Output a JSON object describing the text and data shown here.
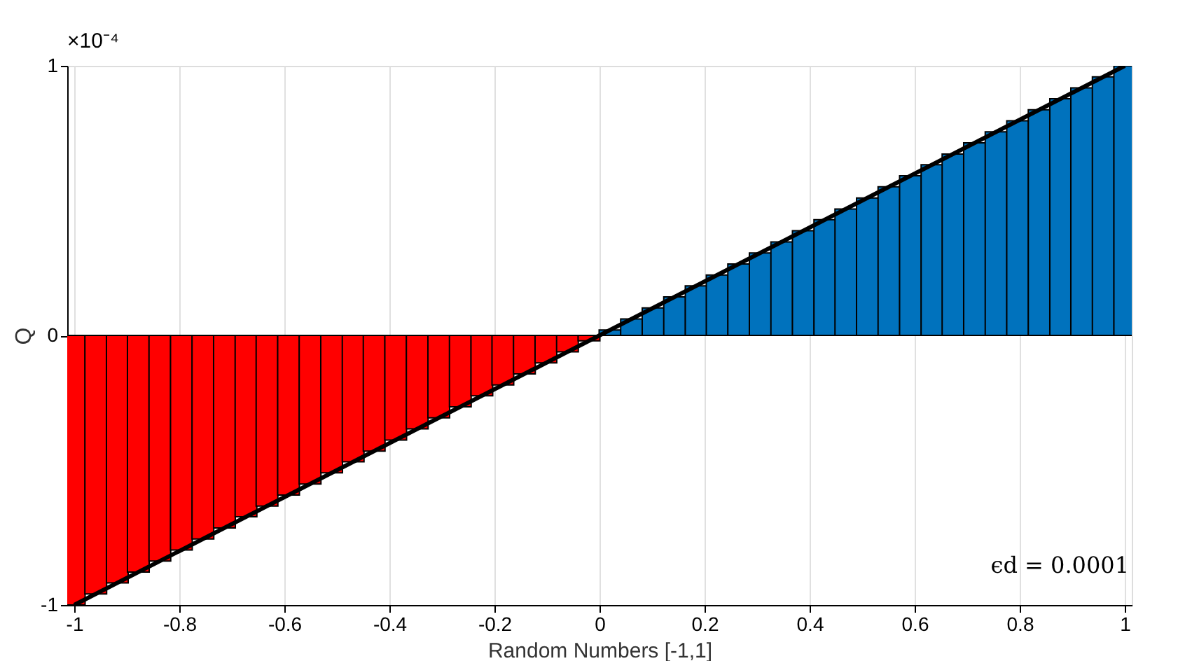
{
  "chart_data": {
    "type": "bar",
    "xlabel": "Random Numbers [-1,1]",
    "ylabel": "Q",
    "xlim": [
      -1,
      1
    ],
    "xticks": [
      -1,
      -0.8,
      -0.6,
      -0.4,
      -0.2,
      0,
      0.2,
      0.4,
      0.6,
      0.8,
      1
    ],
    "ylim": [
      -1,
      1
    ],
    "yticks": [
      -1,
      0,
      1
    ],
    "grid": "x",
    "annotations": [
      "×10⁻⁴",
      "ϵd = 0.0001"
    ],
    "series": [
      {
        "color": "#ff0000",
        "x": [
          -1,
          -0.959,
          -0.918,
          -0.878,
          -0.837,
          -0.796,
          -0.755,
          -0.714,
          -0.673,
          -0.633,
          -0.592,
          -0.551,
          -0.51,
          -0.469,
          -0.429,
          -0.388,
          -0.347,
          -0.306,
          -0.265,
          -0.224,
          -0.184,
          -0.143,
          -0.102,
          -0.061,
          -0.02
        ],
        "values": [
          -1,
          -0.959,
          -0.918,
          -0.878,
          -0.837,
          -0.796,
          -0.755,
          -0.714,
          -0.673,
          -0.633,
          -0.592,
          -0.551,
          -0.51,
          -0.469,
          -0.429,
          -0.388,
          -0.347,
          -0.306,
          -0.265,
          -0.224,
          -0.184,
          -0.143,
          -0.102,
          -0.061,
          -0.02
        ]
      },
      {
        "color": "#0072bd",
        "x": [
          0.02,
          0.061,
          0.102,
          0.143,
          0.184,
          0.224,
          0.265,
          0.306,
          0.347,
          0.388,
          0.429,
          0.469,
          0.51,
          0.551,
          0.592,
          0.633,
          0.673,
          0.714,
          0.755,
          0.796,
          0.837,
          0.878,
          0.918,
          0.959,
          1
        ],
        "values": [
          0.02,
          0.061,
          0.102,
          0.143,
          0.184,
          0.224,
          0.265,
          0.306,
          0.347,
          0.388,
          0.429,
          0.469,
          0.51,
          0.551,
          0.592,
          0.633,
          0.673,
          0.714,
          0.755,
          0.796,
          0.837,
          0.878,
          0.918,
          0.959,
          1
        ]
      },
      {
        "type": "line",
        "color": "#000000",
        "x": [
          -1,
          1
        ],
        "values": [
          -1,
          1
        ]
      }
    ]
  }
}
